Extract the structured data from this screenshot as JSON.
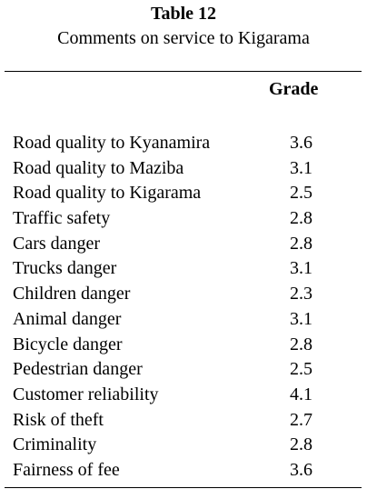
{
  "table": {
    "number": "Table 12",
    "title": "Comments on service to Kigarama",
    "column_header": "Grade",
    "rows": [
      {
        "label": "Road quality to Kyanamira",
        "grade": "3.6"
      },
      {
        "label": "Road quality to Maziba",
        "grade": "3.1"
      },
      {
        "label": "Road quality to Kigarama",
        "grade": "2.5"
      },
      {
        "label": "Traffic safety",
        "grade": "2.8"
      },
      {
        "label": "Cars danger",
        "grade": "2.8"
      },
      {
        "label": "Trucks danger",
        "grade": "3.1"
      },
      {
        "label": "Children danger",
        "grade": "2.3"
      },
      {
        "label": "Animal danger",
        "grade": "3.1"
      },
      {
        "label": "Bicycle danger",
        "grade": "2.8"
      },
      {
        "label": "Pedestrian danger",
        "grade": "2.5"
      },
      {
        "label": "Customer reliability",
        "grade": "4.1"
      },
      {
        "label": "Risk of theft",
        "grade": "2.7"
      },
      {
        "label": "Criminality",
        "grade": "2.8"
      },
      {
        "label": "Fairness of fee",
        "grade": "3.6"
      }
    ]
  }
}
